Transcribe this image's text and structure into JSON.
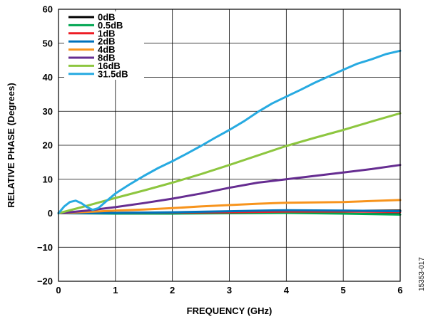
{
  "chart_data": {
    "type": "line",
    "title": "",
    "xlabel": "FREQUENCY (GHz)",
    "ylabel": "RELATIVE PHASE (Degrees)",
    "xlim": [
      0,
      6
    ],
    "ylim": [
      -20,
      60
    ],
    "x_ticks": [
      "0",
      "1",
      "2",
      "3",
      "4",
      "5",
      "6"
    ],
    "y_ticks": [
      "60",
      "50",
      "40",
      "30",
      "20",
      "10",
      "0",
      "−10",
      "−20"
    ],
    "grid": true,
    "legend_position": "top-left",
    "figure_id": "15353-017",
    "series": [
      {
        "name": "0dB",
        "color": "#000000",
        "x": [
          0,
          1,
          2,
          3,
          4,
          5,
          6
        ],
        "y": [
          0,
          0.1,
          0.2,
          0.4,
          0.6,
          0.7,
          0.8
        ]
      },
      {
        "name": "0.5dB",
        "color": "#00a651",
        "x": [
          0,
          1,
          2,
          3,
          4,
          5,
          6
        ],
        "y": [
          0,
          -0.1,
          -0.1,
          0,
          0.1,
          -0.1,
          -0.4
        ]
      },
      {
        "name": "1dB",
        "color": "#ed1c24",
        "x": [
          0,
          1,
          2,
          3,
          4,
          5,
          6
        ],
        "y": [
          0,
          0.1,
          0.2,
          0.3,
          0.5,
          0.5,
          0.4
        ]
      },
      {
        "name": "2dB",
        "color": "#0072bc",
        "x": [
          0,
          1,
          2,
          3,
          4,
          5,
          6
        ],
        "y": [
          0,
          0.1,
          0.3,
          0.6,
          0.9,
          0.8,
          0.6
        ]
      },
      {
        "name": "4dB",
        "color": "#f7941d",
        "x": [
          0,
          0.5,
          1,
          1.5,
          2,
          2.5,
          3,
          3.5,
          4,
          4.5,
          5,
          5.5,
          6
        ],
        "y": [
          0,
          0.4,
          0.8,
          1.1,
          1.5,
          2.0,
          2.4,
          2.8,
          3.1,
          3.2,
          3.3,
          3.6,
          3.9
        ]
      },
      {
        "name": "8dB",
        "color": "#662d91",
        "x": [
          0,
          0.5,
          1,
          1.5,
          2,
          2.5,
          3,
          3.5,
          4,
          4.5,
          5,
          5.5,
          6
        ],
        "y": [
          0,
          0.8,
          1.8,
          3.0,
          4.3,
          5.8,
          7.5,
          9.0,
          10.0,
          11.0,
          12.0,
          13.0,
          14.2
        ]
      },
      {
        "name": "16dB",
        "color": "#8dc63f",
        "x": [
          0,
          0.5,
          1,
          1.5,
          2,
          2.5,
          3,
          3.5,
          4,
          4.5,
          5,
          5.5,
          6
        ],
        "y": [
          0,
          2.2,
          4.5,
          6.7,
          9.0,
          11.5,
          14.2,
          17.0,
          19.8,
          22.2,
          24.5,
          27.0,
          29.4
        ]
      },
      {
        "name": "31.5dB",
        "color": "#27aae1",
        "x": [
          0,
          0.1,
          0.2,
          0.3,
          0.4,
          0.5,
          0.6,
          0.7,
          0.8,
          1.0,
          1.25,
          1.5,
          1.75,
          2.0,
          2.25,
          2.5,
          2.75,
          3.0,
          3.25,
          3.5,
          3.75,
          4.0,
          4.25,
          4.5,
          4.75,
          5.0,
          5.25,
          5.5,
          5.75,
          6.0
        ],
        "y": [
          0,
          2.0,
          3.3,
          3.7,
          3.0,
          1.8,
          1.0,
          1.5,
          3.0,
          5.8,
          8.5,
          11.0,
          13.3,
          15.3,
          17.5,
          19.8,
          22.2,
          24.5,
          27.0,
          29.8,
          32.3,
          34.3,
          36.3,
          38.4,
          40.3,
          42.2,
          44.0,
          45.3,
          46.8,
          47.8
        ]
      }
    ]
  }
}
